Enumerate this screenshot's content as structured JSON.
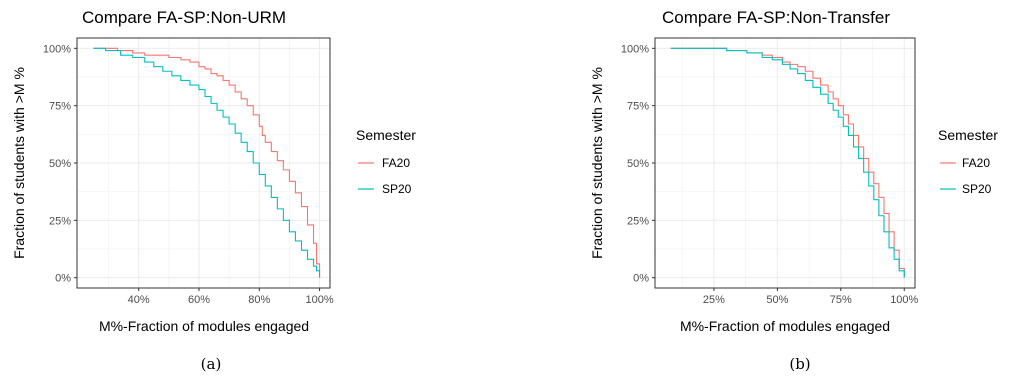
{
  "chart_data": [
    {
      "type": "line",
      "subtype": "step",
      "title": "Compare FA-SP:Non-URM",
      "xlabel": "M%-Fraction of modules engaged",
      "ylabel": "Fraction of students with >M %",
      "xlim": [
        23,
        100
      ],
      "ylim": [
        0,
        100
      ],
      "xticks": [
        40,
        60,
        80,
        100
      ],
      "xtick_labels": [
        "40%",
        "60%",
        "80%",
        "100%"
      ],
      "yticks": [
        0,
        25,
        50,
        75,
        100
      ],
      "ytick_labels": [
        "0%",
        "25%",
        "50%",
        "75%",
        "100%"
      ],
      "grid": true,
      "legend_title": "Semester",
      "legend_position": "right",
      "caption": "(a)",
      "series": [
        {
          "name": "FA20",
          "color": "#F8766D",
          "points": [
            [
              25,
              100
            ],
            [
              33,
              99
            ],
            [
              38,
              98
            ],
            [
              42,
              97
            ],
            [
              46,
              97
            ],
            [
              50,
              96
            ],
            [
              54,
              95
            ],
            [
              57,
              94
            ],
            [
              60,
              92
            ],
            [
              62,
              91
            ],
            [
              64,
              89
            ],
            [
              66,
              88
            ],
            [
              68,
              86
            ],
            [
              70,
              84
            ],
            [
              72,
              81
            ],
            [
              74,
              78
            ],
            [
              76,
              75
            ],
            [
              78,
              71
            ],
            [
              80,
              66
            ],
            [
              81,
              62
            ],
            [
              82,
              59
            ],
            [
              84,
              55
            ],
            [
              86,
              51
            ],
            [
              88,
              47
            ],
            [
              90,
              42
            ],
            [
              92,
              37
            ],
            [
              94,
              31
            ],
            [
              96,
              23
            ],
            [
              98,
              15
            ],
            [
              99,
              6
            ],
            [
              100,
              0
            ]
          ]
        },
        {
          "name": "SP20",
          "color": "#00BFC4",
          "points": [
            [
              25,
              100
            ],
            [
              29,
              99
            ],
            [
              34,
              97
            ],
            [
              38,
              96
            ],
            [
              42,
              94
            ],
            [
              45,
              92
            ],
            [
              48,
              90
            ],
            [
              51,
              88
            ],
            [
              54,
              86
            ],
            [
              57,
              84
            ],
            [
              60,
              82
            ],
            [
              62,
              79
            ],
            [
              64,
              76
            ],
            [
              66,
              73
            ],
            [
              68,
              70
            ],
            [
              70,
              67
            ],
            [
              72,
              63
            ],
            [
              74,
              59
            ],
            [
              76,
              55
            ],
            [
              78,
              50
            ],
            [
              80,
              45
            ],
            [
              82,
              40
            ],
            [
              84,
              35
            ],
            [
              86,
              30
            ],
            [
              88,
              25
            ],
            [
              90,
              20
            ],
            [
              92,
              16
            ],
            [
              94,
              12
            ],
            [
              96,
              8
            ],
            [
              98,
              5
            ],
            [
              99,
              3
            ],
            [
              100,
              0
            ]
          ]
        }
      ]
    },
    {
      "type": "line",
      "subtype": "step",
      "title": "Compare FA-SP:Non-Transfer",
      "xlabel": "M%-Fraction of modules engaged",
      "ylabel": "Fraction of students with >M %",
      "xlim": [
        6,
        100
      ],
      "ylim": [
        0,
        100
      ],
      "xticks": [
        25,
        50,
        75,
        100
      ],
      "xtick_labels": [
        "25%",
        "50%",
        "75%",
        "100%"
      ],
      "yticks": [
        0,
        25,
        50,
        75,
        100
      ],
      "ytick_labels": [
        "0%",
        "25%",
        "50%",
        "75%",
        "100%"
      ],
      "grid": true,
      "legend_title": "Semester",
      "legend_position": "right",
      "caption": "(b)",
      "series": [
        {
          "name": "FA20",
          "color": "#F8766D",
          "points": [
            [
              8,
              100
            ],
            [
              20,
              100
            ],
            [
              30,
              99
            ],
            [
              38,
              98
            ],
            [
              44,
              97
            ],
            [
              48,
              96
            ],
            [
              52,
              94
            ],
            [
              55,
              93
            ],
            [
              58,
              92
            ],
            [
              61,
              90
            ],
            [
              64,
              87
            ],
            [
              67,
              84
            ],
            [
              70,
              81
            ],
            [
              72,
              78
            ],
            [
              74,
              75
            ],
            [
              76,
              71
            ],
            [
              78,
              67
            ],
            [
              80,
              62
            ],
            [
              82,
              57
            ],
            [
              84,
              52
            ],
            [
              86,
              46
            ],
            [
              88,
              41
            ],
            [
              90,
              35
            ],
            [
              92,
              28
            ],
            [
              94,
              20
            ],
            [
              96,
              12
            ],
            [
              98,
              4
            ],
            [
              100,
              0
            ]
          ]
        },
        {
          "name": "SP20",
          "color": "#00BFC4",
          "points": [
            [
              8,
              100
            ],
            [
              20,
              100
            ],
            [
              30,
              99
            ],
            [
              38,
              98
            ],
            [
              44,
              96
            ],
            [
              48,
              95
            ],
            [
              52,
              93
            ],
            [
              55,
              91
            ],
            [
              58,
              89
            ],
            [
              61,
              86
            ],
            [
              64,
              83
            ],
            [
              67,
              80
            ],
            [
              70,
              76
            ],
            [
              72,
              73
            ],
            [
              74,
              70
            ],
            [
              76,
              66
            ],
            [
              78,
              62
            ],
            [
              80,
              57
            ],
            [
              82,
              52
            ],
            [
              84,
              46
            ],
            [
              86,
              40
            ],
            [
              88,
              34
            ],
            [
              90,
              27
            ],
            [
              92,
              20
            ],
            [
              94,
              13
            ],
            [
              96,
              8
            ],
            [
              98,
              3
            ],
            [
              100,
              0
            ]
          ]
        }
      ]
    }
  ]
}
